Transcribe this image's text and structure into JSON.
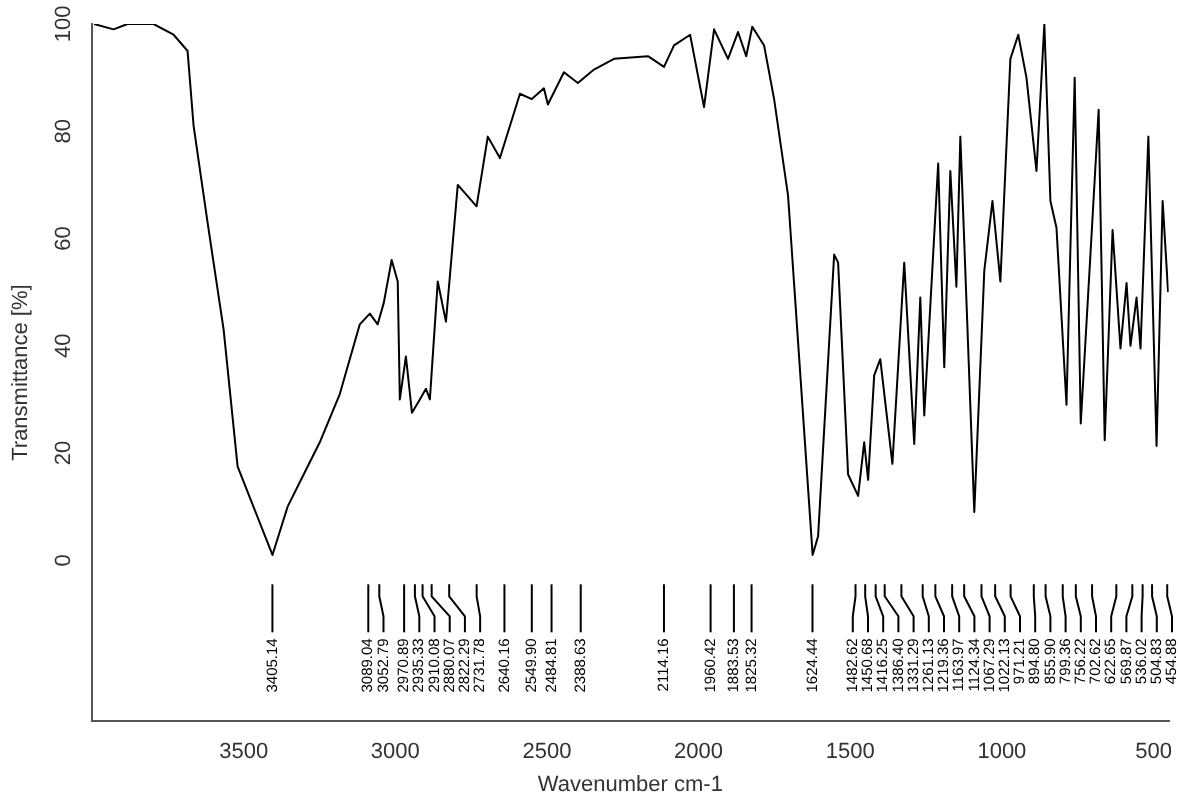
{
  "chart_data": {
    "type": "line",
    "xlabel": "Wavenumber cm-1",
    "ylabel": "Transmittance [%]",
    "xlim": [
      4000,
      450
    ],
    "xticks": [
      3500,
      3000,
      2500,
      2000,
      1500,
      1000,
      500
    ],
    "ylim": [
      -30,
      100
    ],
    "yticks": [
      0,
      20,
      40,
      60,
      80,
      100
    ],
    "grid": false,
    "legend": false,
    "marker": "none",
    "line_style": "solid",
    "series": [
      {
        "color": "#000000",
        "x": [
          3993,
          3929,
          3883,
          3797,
          3731,
          3685,
          3665,
          3619,
          3566,
          3520,
          3405,
          3355,
          3289,
          3249,
          3183,
          3117,
          3084,
          3058,
          3038,
          3012,
          2992,
          2985,
          2965,
          2945,
          2919,
          2899,
          2886,
          2860,
          2833,
          2794,
          2732,
          2695,
          2655,
          2589,
          2550,
          2510,
          2497,
          2444,
          2398,
          2345,
          2279,
          2167,
          2114,
          2081,
          2028,
          1982,
          1949,
          1903,
          1870,
          1843,
          1823,
          1784,
          1751,
          1705,
          1624,
          1606,
          1553,
          1540,
          1507,
          1474,
          1454,
          1441,
          1421,
          1401,
          1361,
          1322,
          1289,
          1269,
          1256,
          1210,
          1190,
          1170,
          1150,
          1137,
          1091,
          1058,
          1031,
          1005,
          972,
          946,
          919,
          886,
          860,
          840,
          820,
          787,
          760,
          740,
          703,
          681,
          661,
          635,
          609,
          589,
          576,
          556,
          543,
          517,
          490,
          470,
          452
        ],
        "values": [
          100,
          99,
          100,
          100,
          98,
          95,
          81,
          63,
          43,
          17.5,
          1,
          10,
          17.5,
          22,
          31,
          44,
          46,
          44,
          48,
          56,
          52,
          30,
          38,
          27.5,
          30,
          32,
          30,
          52,
          44.5,
          70,
          66,
          79,
          75,
          87,
          86,
          88,
          85,
          91,
          89,
          91.5,
          93.5,
          94,
          92,
          96,
          98,
          84.5,
          99,
          93.5,
          98.5,
          94,
          99.5,
          96,
          86,
          68,
          1,
          4.5,
          57,
          55.5,
          16,
          12,
          22,
          15,
          34.5,
          37.5,
          18,
          55.5,
          21.7,
          49,
          27,
          74,
          36,
          72.6,
          51,
          79,
          9,
          54,
          67,
          52,
          93.5,
          98,
          90,
          72.6,
          100,
          67,
          62,
          29,
          90,
          25.5,
          62,
          84,
          22.4,
          61.6,
          39.5,
          51.7,
          40,
          49,
          39.5,
          79,
          21.3,
          67,
          50
        ]
      }
    ],
    "annotations": [
      {
        "text": "3405.14",
        "x": 3405.14
      },
      {
        "text": "3089.04",
        "x": 3089.04
      },
      {
        "text": "3052.79",
        "x": 3052.79
      },
      {
        "text": "2970.89",
        "x": 2970.89
      },
      {
        "text": "2935.33",
        "x": 2935.33
      },
      {
        "text": "2910.08",
        "x": 2910.08
      },
      {
        "text": "2880.07",
        "x": 2880.07
      },
      {
        "text": "2822.29",
        "x": 2822.29
      },
      {
        "text": "2731.78",
        "x": 2731.78
      },
      {
        "text": "2640.16",
        "x": 2640.16
      },
      {
        "text": "2549.90",
        "x": 2549.9
      },
      {
        "text": "2484.81",
        "x": 2484.81
      },
      {
        "text": "2388.63",
        "x": 2388.63
      },
      {
        "text": "2114.16",
        "x": 2114.16
      },
      {
        "text": "1960.42",
        "x": 1960.42
      },
      {
        "text": "1883.53",
        "x": 1883.53
      },
      {
        "text": "1825.32",
        "x": 1825.32
      },
      {
        "text": "1624.44",
        "x": 1624.44
      },
      {
        "text": "1482.62",
        "x": 1482.62
      },
      {
        "text": "1450.68",
        "x": 1450.68
      },
      {
        "text": "1416.25",
        "x": 1416.25
      },
      {
        "text": "1386.40",
        "x": 1386.4
      },
      {
        "text": "1331.29",
        "x": 1331.29
      },
      {
        "text": "1261.13",
        "x": 1261.13
      },
      {
        "text": "1219.36",
        "x": 1219.36
      },
      {
        "text": "1163.97",
        "x": 1163.97
      },
      {
        "text": "1124.34",
        "x": 1124.34
      },
      {
        "text": "1067.29",
        "x": 1067.29
      },
      {
        "text": "1022.13",
        "x": 1022.13
      },
      {
        "text": "971.21",
        "x": 971.21
      },
      {
        "text": "894.80",
        "x": 894.8
      },
      {
        "text": "855.90",
        "x": 855.9
      },
      {
        "text": "799.36",
        "x": 799.36
      },
      {
        "text": "756.22",
        "x": 756.22
      },
      {
        "text": "702.62",
        "x": 702.62
      },
      {
        "text": "622.65",
        "x": 622.65
      },
      {
        "text": "569.87",
        "x": 569.87
      },
      {
        "text": "536.02",
        "x": 536.02
      },
      {
        "text": "504.83",
        "x": 504.83
      },
      {
        "text": "454.88",
        "x": 454.88
      }
    ]
  }
}
